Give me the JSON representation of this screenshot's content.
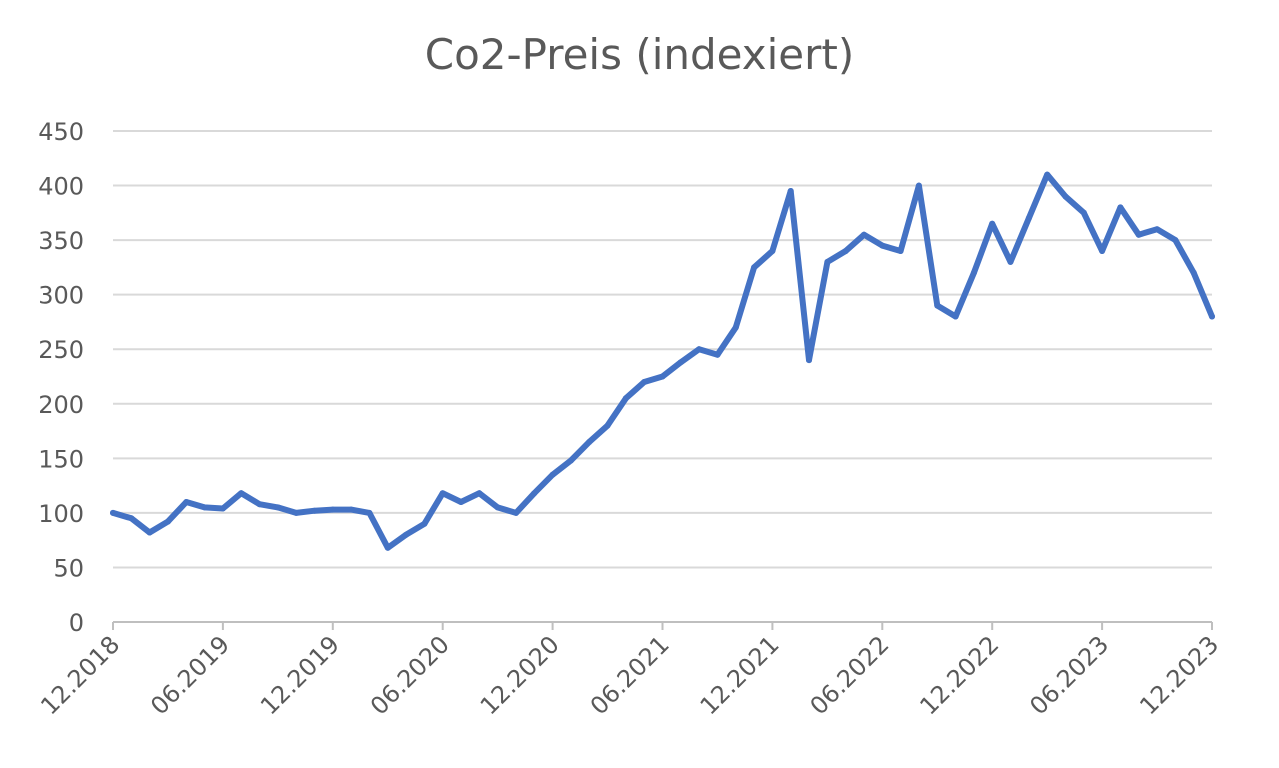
{
  "chart_data": {
    "type": "line",
    "title": "Co2-Preis (indexiert)",
    "xlabel": "",
    "ylabel": "",
    "ylim": [
      0,
      450
    ],
    "y_ticks": [
      "0",
      "50",
      "100",
      "150",
      "200",
      "250",
      "300",
      "350",
      "400",
      "450"
    ],
    "x_tick_labels": [
      "12.2018",
      "06.2019",
      "12.2019",
      "06.2020",
      "12.2020",
      "06.2021",
      "12.2021",
      "06.2022",
      "12.2022",
      "06.2023",
      "12.2023"
    ],
    "grid": "horizontal",
    "legend": "none",
    "colors": {
      "line": "#4472c4",
      "grid": "#d9d9d9",
      "axis": "#bfbfbf",
      "text": "#595959"
    },
    "x": [
      "2018-12",
      "2019-01",
      "2019-02",
      "2019-03",
      "2019-04",
      "2019-05",
      "2019-06",
      "2019-07",
      "2019-08",
      "2019-09",
      "2019-10",
      "2019-11",
      "2019-12",
      "2020-01",
      "2020-02",
      "2020-03",
      "2020-04",
      "2020-05",
      "2020-06",
      "2020-07",
      "2020-08",
      "2020-09",
      "2020-10",
      "2020-11",
      "2020-12",
      "2021-01",
      "2021-02",
      "2021-03",
      "2021-04",
      "2021-05",
      "2021-06",
      "2021-07",
      "2021-08",
      "2021-09",
      "2021-10",
      "2021-11",
      "2021-12",
      "2022-01",
      "2022-02",
      "2022-03",
      "2022-04",
      "2022-05",
      "2022-06",
      "2022-07",
      "2022-08",
      "2022-09",
      "2022-10",
      "2022-11",
      "2022-12",
      "2023-01",
      "2023-02",
      "2023-03",
      "2023-04",
      "2023-05",
      "2023-06",
      "2023-07",
      "2023-08",
      "2023-09",
      "2023-10",
      "2023-11",
      "2023-12"
    ],
    "values": [
      100,
      95,
      82,
      92,
      110,
      105,
      104,
      118,
      108,
      105,
      100,
      102,
      103,
      103,
      100,
      68,
      80,
      90,
      118,
      110,
      118,
      105,
      100,
      118,
      135,
      148,
      165,
      180,
      205,
      220,
      225,
      238,
      250,
      245,
      270,
      325,
      340,
      395,
      240,
      330,
      340,
      355,
      345,
      340,
      400,
      290,
      280,
      320,
      365,
      330,
      370,
      410,
      390,
      375,
      340,
      380,
      355,
      360,
      350,
      320,
      280
    ]
  }
}
